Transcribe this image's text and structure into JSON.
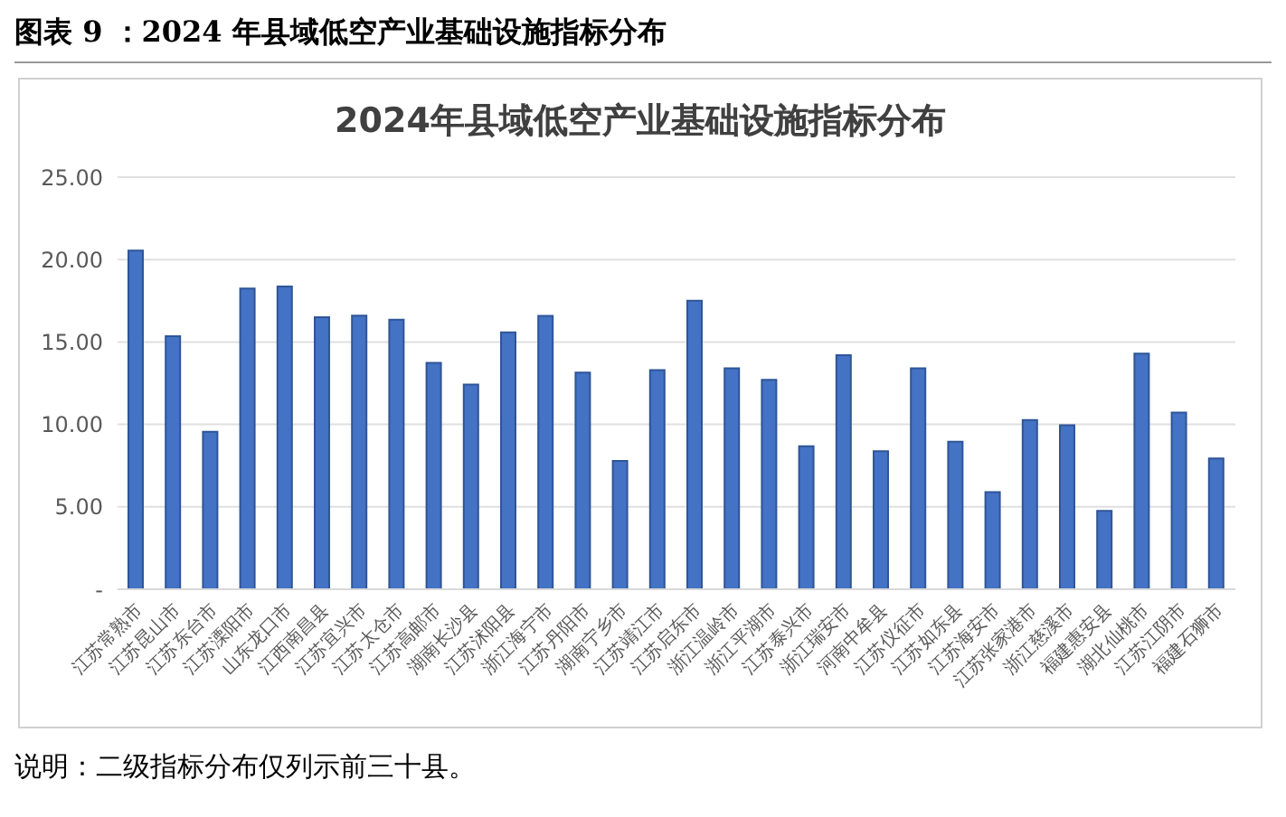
{
  "chart_data": {
    "type": "bar",
    "title": "2024年县域低空产业基础设施指标分布",
    "categories": [
      "江苏常熟市",
      "江苏昆山市",
      "江苏东台市",
      "江苏溧阳市",
      "山东龙口市",
      "江西南昌县",
      "江苏宜兴市",
      "江苏太仓市",
      "江苏高邮市",
      "湖南长沙县",
      "江苏沭阳县",
      "浙江海宁市",
      "江苏丹阳市",
      "湖南宁乡市",
      "江苏靖江市",
      "江苏启东市",
      "浙江温岭市",
      "浙江平湖市",
      "江苏泰兴市",
      "浙江瑞安市",
      "河南中牟县",
      "江苏仪征市",
      "江苏如东县",
      "江苏海安市",
      "江苏张家港市",
      "浙江慈溪市",
      "福建惠安县",
      "湖北仙桃市",
      "江苏江阴市",
      "福建石狮市"
    ],
    "values": [
      20.55,
      15.35,
      9.56,
      18.24,
      18.36,
      16.5,
      16.6,
      16.35,
      13.73,
      12.42,
      15.58,
      16.59,
      13.15,
      7.79,
      13.3,
      17.5,
      13.4,
      12.7,
      8.68,
      14.2,
      8.37,
      13.4,
      8.95,
      5.9,
      10.26,
      9.95,
      4.75,
      14.3,
      10.72,
      7.94
    ],
    "color": "#4472c4",
    "ylim": [
      0,
      25
    ],
    "yticks": [
      {
        "value": 0,
        "label": "-"
      },
      {
        "value": 5,
        "label": "5.00"
      },
      {
        "value": 10,
        "label": "10.00"
      },
      {
        "value": 15,
        "label": "15.00"
      },
      {
        "value": 20,
        "label": "20.00"
      },
      {
        "value": 25,
        "label": "25.00"
      }
    ],
    "grid": "y",
    "legend": false,
    "annotations": [
      "图表 9 ：2024 年县域低空产业基础设施指标分布",
      "说明：二级指标分布仅列示前三十县。"
    ]
  }
}
